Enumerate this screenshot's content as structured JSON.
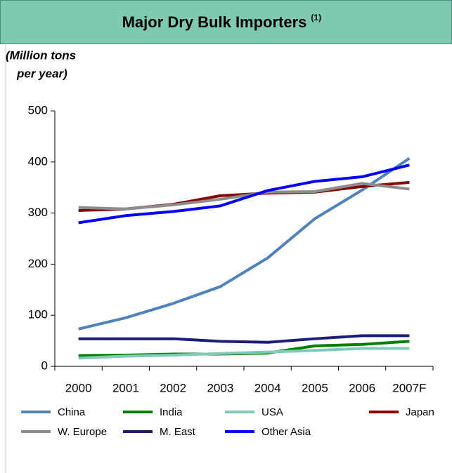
{
  "chart_data": {
    "type": "line",
    "title": "Major Dry Bulk Importers",
    "title_note": "(1)",
    "ylabel": [
      "(Million tons",
      "per year)"
    ],
    "categories": [
      "2000",
      "2001",
      "2002",
      "2003",
      "2004",
      "2005",
      "2006",
      "2007F"
    ],
    "series": [
      {
        "name": "China",
        "color": "#4f81bd",
        "values": [
          73,
          95,
          123,
          156,
          212,
          289,
          345,
          407
        ]
      },
      {
        "name": "India",
        "color": "#008000",
        "values": [
          21,
          22,
          24,
          24,
          26,
          40,
          43,
          49
        ]
      },
      {
        "name": "USA",
        "color": "#7fcab8",
        "values": [
          16,
          20,
          22,
          25,
          28,
          31,
          35,
          35
        ]
      },
      {
        "name": "Japan",
        "color": "#8b0000",
        "values": [
          305,
          308,
          317,
          334,
          339,
          341,
          352,
          360
        ]
      },
      {
        "name": "W. Europe",
        "color": "#8c8c8c",
        "values": [
          311,
          308,
          316,
          327,
          341,
          342,
          358,
          347
        ]
      },
      {
        "name": "M. East",
        "color": "#1c1c7c",
        "values": [
          54,
          54,
          54,
          49,
          47,
          54,
          60,
          60
        ]
      },
      {
        "name": "Other Asia",
        "color": "#0000ff",
        "values": [
          281,
          295,
          303,
          314,
          344,
          362,
          371,
          394
        ]
      }
    ],
    "ylim": [
      0,
      500
    ],
    "yticks": [
      0,
      100,
      200,
      300,
      400,
      500
    ]
  }
}
